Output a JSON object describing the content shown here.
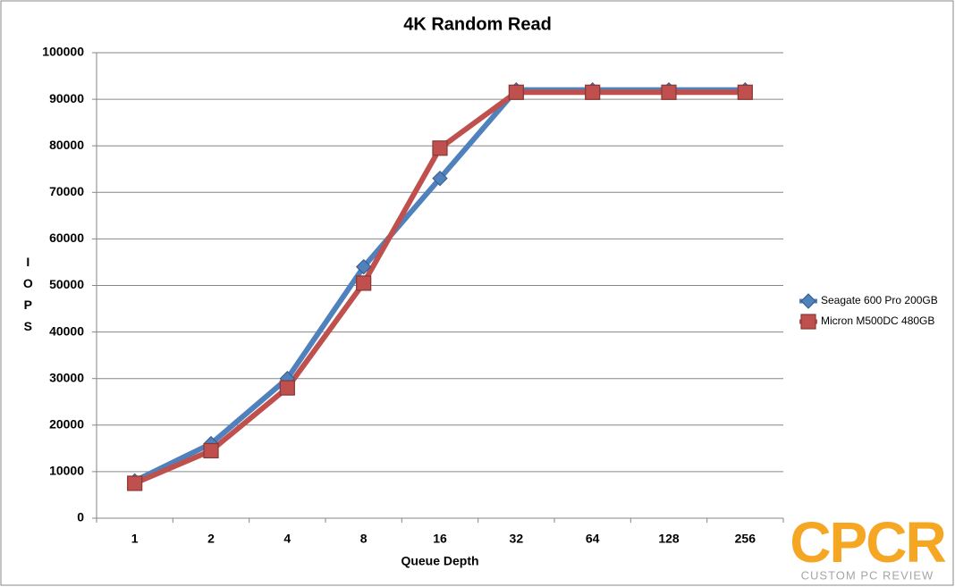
{
  "chart_data": {
    "type": "line",
    "title": "4K Random Read",
    "x_label": "Queue Depth",
    "y_label": "IOPS",
    "categories": [
      "1",
      "2",
      "4",
      "8",
      "16",
      "32",
      "64",
      "128",
      "256"
    ],
    "series": [
      {
        "name": "Seagate 600 Pro 200GB",
        "color": "#4f81bd",
        "marker": "diamond",
        "values": [
          8000,
          16000,
          30000,
          54000,
          73000,
          92000,
          92000,
          92000,
          92000
        ]
      },
      {
        "name": "Micron M500DC 480GB",
        "color": "#c0504d",
        "marker": "square",
        "values": [
          7500,
          14500,
          28000,
          50500,
          79500,
          91500,
          91500,
          91500,
          91500
        ]
      }
    ],
    "ylim": [
      0,
      100000
    ],
    "yticks": [
      0,
      10000,
      20000,
      30000,
      40000,
      50000,
      60000,
      70000,
      80000,
      90000,
      100000
    ],
    "grid": true,
    "legend": "right",
    "watermark": {
      "logo": "CPCR",
      "text": "CUSTOM PC REVIEW",
      "color": "#f5a623"
    }
  }
}
